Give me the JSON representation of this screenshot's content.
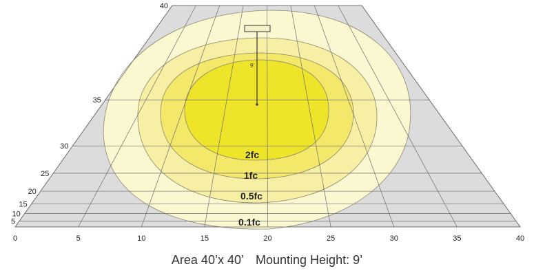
{
  "caption": {
    "area": "Area 40’x 40’",
    "mounting": "Mounting Height: 9’"
  },
  "diagram": {
    "x_ticks": [
      "0",
      "5",
      "10",
      "15",
      "20",
      "25",
      "30",
      "35",
      "40"
    ],
    "y_ticks": [
      "5",
      "10",
      "15",
      "20",
      "25",
      "30",
      "35",
      "40"
    ],
    "contour_labels": [
      "2fc",
      "1fc",
      "0.5fc",
      "0.1fc"
    ],
    "fixture_height_label": "9’",
    "colors": {
      "floor": "#dcdcdc",
      "grid": "#666666",
      "contour_0_1fc": "#fbf7d0",
      "contour_0_5fc": "#f7efa4",
      "contour_1fc": "#f3e86a",
      "contour_2fc": "#eee52a"
    }
  },
  "chart_data": {
    "type": "isolux-diagram",
    "area_ft": [
      40,
      40
    ],
    "mounting_height_ft": 9,
    "fixture_position_ft": [
      20,
      30
    ],
    "x_range": [
      0,
      40
    ],
    "y_range": [
      0,
      40
    ],
    "contours_fc": [
      2,
      1,
      0.5,
      0.1
    ]
  }
}
